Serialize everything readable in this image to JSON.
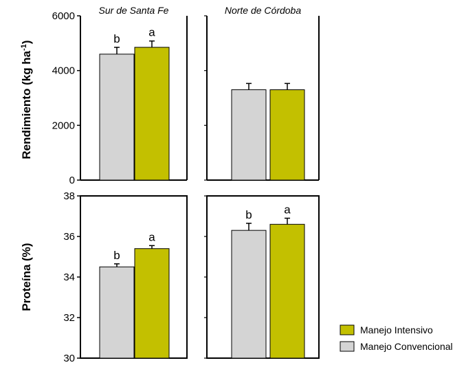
{
  "chart_data": [
    {
      "type": "bar",
      "title": "Sur de Santa Fe",
      "ylabel": "Rendimiento (kg ha-1)",
      "ylim": [
        0,
        6000
      ],
      "yticks": [
        "0",
        "2000",
        "4000",
        "6000"
      ],
      "series": [
        {
          "name": "Manejo Convencional",
          "values": [
            4600
          ],
          "errors": [
            250
          ],
          "letters": [
            "b"
          ]
        },
        {
          "name": "Manejo Intensivo",
          "values": [
            4850
          ],
          "errors": [
            230
          ],
          "letters": [
            "a"
          ]
        }
      ]
    },
    {
      "type": "bar",
      "title": "Norte de Córdoba",
      "ylabel": "Rendimiento (kg ha-1)",
      "ylim": [
        0,
        6000
      ],
      "yticks": [
        "",
        "",
        "",
        ""
      ],
      "series": [
        {
          "name": "Manejo Convencional",
          "values": [
            3300
          ],
          "errors": [
            230
          ],
          "letters": [
            ""
          ]
        },
        {
          "name": "Manejo Intensivo",
          "values": [
            3300
          ],
          "errors": [
            230
          ],
          "letters": [
            ""
          ]
        }
      ]
    },
    {
      "type": "bar",
      "title": "",
      "ylabel": "Proteína (%)",
      "ylim": [
        30,
        38
      ],
      "yticks": [
        "30",
        "32",
        "34",
        "36",
        "38"
      ],
      "series": [
        {
          "name": "Manejo Convencional",
          "values": [
            34.5
          ],
          "errors": [
            0.15
          ],
          "letters": [
            "b"
          ]
        },
        {
          "name": "Manejo Intensivo",
          "values": [
            35.4
          ],
          "errors": [
            0.15
          ],
          "letters": [
            "a"
          ]
        }
      ]
    },
    {
      "type": "bar",
      "title": "",
      "ylabel": "Proteína (%)",
      "ylim": [
        30,
        38
      ],
      "yticks": [
        "",
        "",
        "",
        "",
        ""
      ],
      "series": [
        {
          "name": "Manejo Convencional",
          "values": [
            36.3
          ],
          "errors": [
            0.35
          ],
          "letters": [
            "b"
          ]
        },
        {
          "name": "Manejo Intensivo",
          "values": [
            36.6
          ],
          "errors": [
            0.3
          ],
          "letters": [
            "a"
          ]
        }
      ]
    }
  ],
  "ylabels": {
    "top_text": "Rendimiento (kg ha",
    "top_sup": "-1",
    "top_close": ")",
    "bottom": "Proteína (%)"
  },
  "legend": [
    {
      "label": "Manejo Intensivo",
      "color": "#c3c000"
    },
    {
      "label": "Manejo Convencional",
      "color": "#d4d4d4"
    }
  ],
  "colors": {
    "conventional": "#d4d4d4",
    "intensive": "#c3c000",
    "edge": "#000000"
  }
}
